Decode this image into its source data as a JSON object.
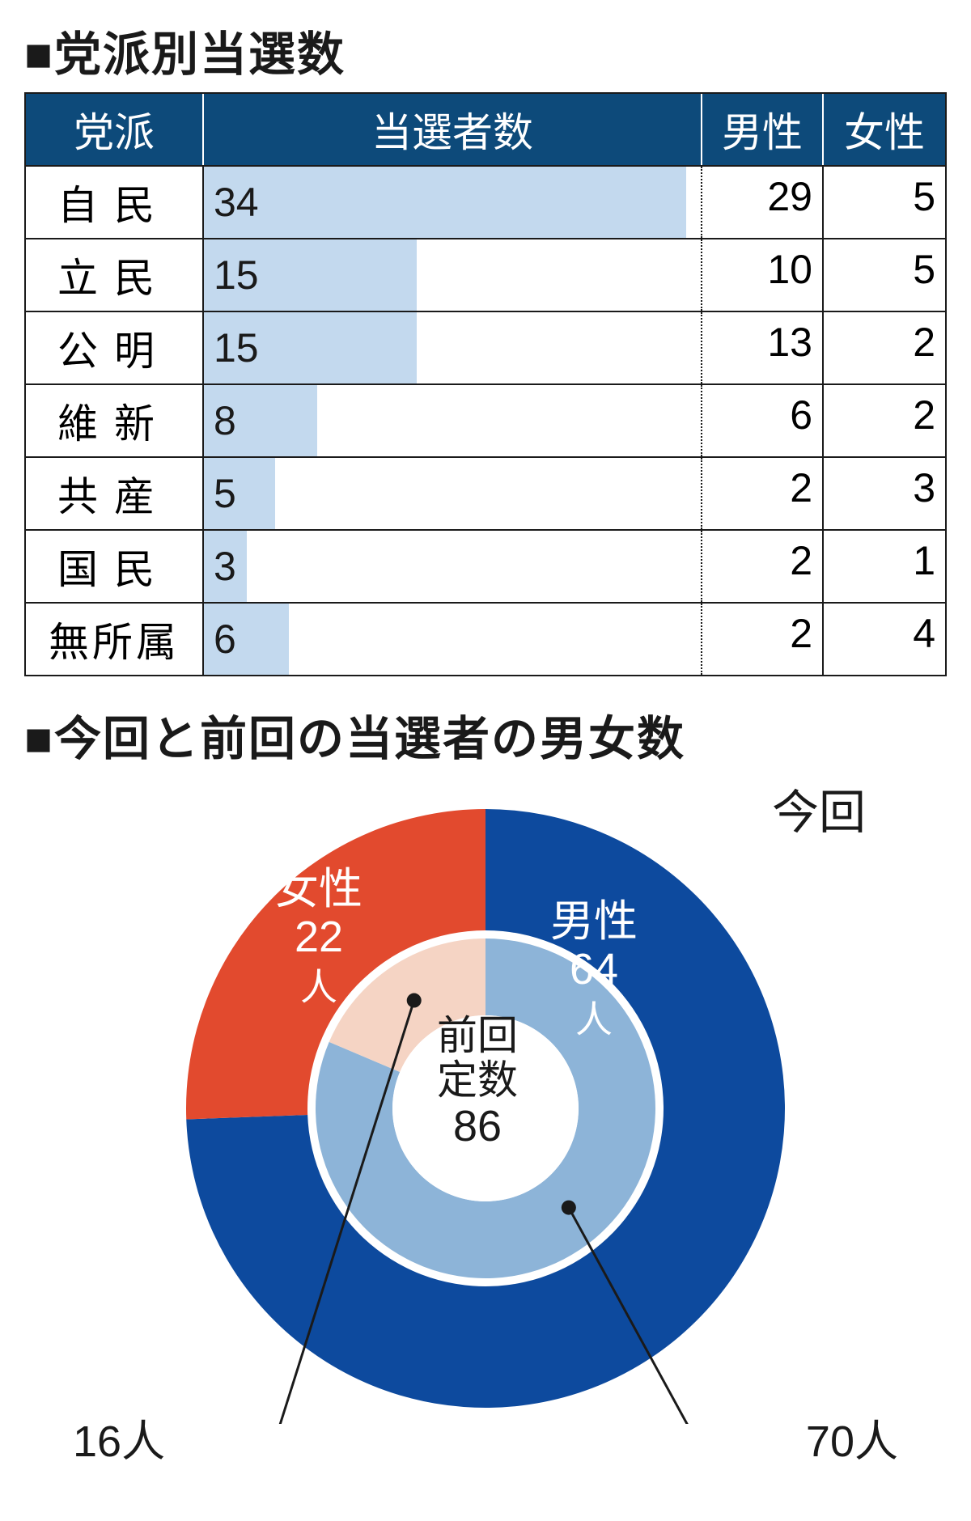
{
  "table": {
    "title": "■党派別当選数",
    "headers": {
      "party": "党派",
      "elected": "当選者数",
      "male": "男性",
      "female": "女性"
    },
    "header_bg": "#0d4a7a",
    "header_color": "#ffffff",
    "bar_color": "#c3d9ee",
    "border_color": "#1a1a1a",
    "max_value": 35,
    "rows": [
      {
        "party": "自民",
        "value": 34,
        "male": 29,
        "female": 5,
        "tight": false
      },
      {
        "party": "立民",
        "value": 15,
        "male": 10,
        "female": 5,
        "tight": false
      },
      {
        "party": "公明",
        "value": 15,
        "male": 13,
        "female": 2,
        "tight": false
      },
      {
        "party": "維新",
        "value": 8,
        "male": 6,
        "female": 2,
        "tight": false
      },
      {
        "party": "共産",
        "value": 5,
        "male": 2,
        "female": 3,
        "tight": false
      },
      {
        "party": "国民",
        "value": 3,
        "male": 2,
        "female": 1,
        "tight": false
      },
      {
        "party": "無所属",
        "value": 6,
        "male": 2,
        "female": 4,
        "tight": true
      }
    ]
  },
  "donut": {
    "title": "■今回と前回の当選者の男女数",
    "outer": {
      "label": "今回",
      "male": {
        "label": "男性",
        "value": 64,
        "unit": "人",
        "color": "#0d4a9e"
      },
      "female": {
        "label": "女性",
        "value": 22,
        "unit": "人",
        "color": "#e24a2e"
      }
    },
    "inner": {
      "label": "前回",
      "male": {
        "value": 70,
        "unit": "人",
        "color": "#8db4d8"
      },
      "female": {
        "value": 16,
        "unit": "人",
        "color": "#f5d4c4"
      }
    },
    "center": {
      "label": "定数",
      "value": 86,
      "bg": "#ffffff"
    },
    "background": "#ffffff",
    "text_color": "#1a1a1a",
    "title_fontsize": 58,
    "label_fontsize": 54
  }
}
